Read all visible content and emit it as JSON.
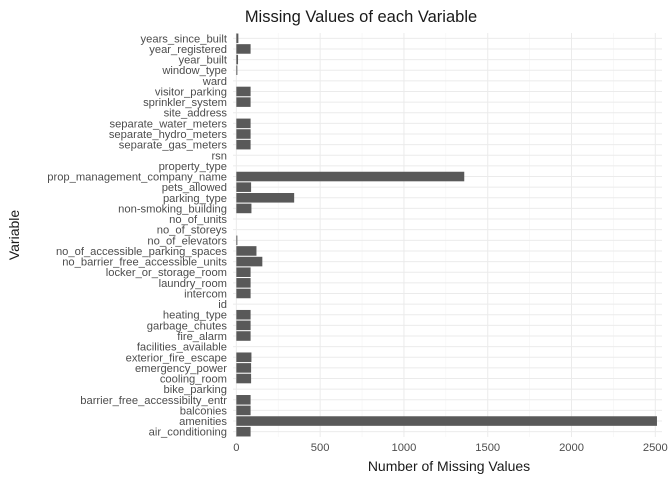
{
  "chart_data": {
    "type": "bar",
    "orientation": "horizontal",
    "title": "Missing Values of each Variable",
    "xlabel": "Number of Missing Values",
    "ylabel": "Variable",
    "xlim": [
      -20,
      2540
    ],
    "xticks": [
      0,
      500,
      1000,
      1500,
      2000,
      2500
    ],
    "xtick_labels": [
      "0",
      "500",
      "1000",
      "1500",
      "2000",
      "2500"
    ],
    "grid": true,
    "legend": "none",
    "bar_color": "#595959",
    "categories": [
      "years_since_built",
      "year_registered",
      "year_built",
      "window_type",
      "ward",
      "visitor_parking",
      "sprinkler_system",
      "site_address",
      "separate_water_meters",
      "separate_hydro_meters",
      "separate_gas_meters",
      "rsn",
      "property_type",
      "prop_management_company_name",
      "pets_allowed",
      "parking_type",
      "non-smoking_building",
      "no_of_units",
      "no_of_storeys",
      "no_of_elevators",
      "no_of_accessible_parking_spaces",
      "no_barrier_free_accessible_units",
      "locker_or_storage_room",
      "laundry_room",
      "intercom",
      "id",
      "heating_type",
      "garbage_chutes",
      "fire_alarm",
      "facilities_available",
      "exterior_fire_escape",
      "emergency_power",
      "cooling_room",
      "bike_parking",
      "barrier_free_accessibilty_entr",
      "balconies",
      "amenities",
      "air_conditioning"
    ],
    "values": [
      12,
      85,
      10,
      5,
      0,
      85,
      85,
      0,
      85,
      85,
      85,
      0,
      0,
      1360,
      88,
      345,
      90,
      0,
      0,
      5,
      120,
      155,
      85,
      85,
      85,
      0,
      85,
      85,
      85,
      0,
      90,
      88,
      88,
      0,
      85,
      85,
      2510,
      85
    ]
  }
}
